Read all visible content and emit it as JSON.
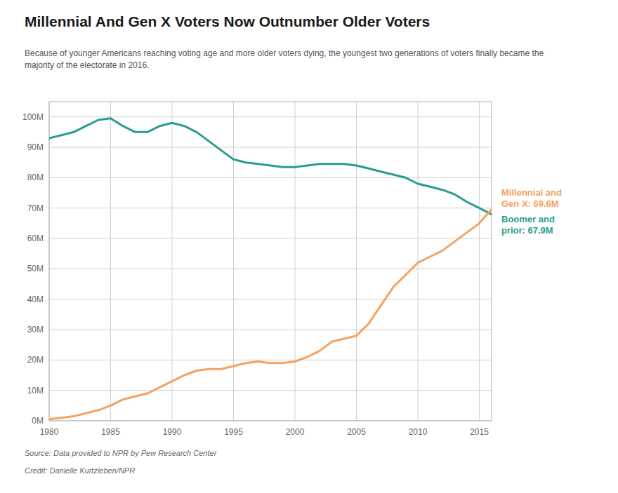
{
  "chart_data": {
    "type": "line",
    "title": "Millennial And Gen X Voters Now Outnumber Older Voters",
    "subtitle": "Because of younger Americans reaching voting age and more older voters dying, the youngest two generations of voters finally became the\nmajority of the electorate in 2016.",
    "source": "Source: Data provided to NPR by Pew Research Center",
    "credit": "Credit: Danielle Kurtzleben/NPR",
    "x": [
      1980,
      1981,
      1982,
      1983,
      1984,
      1985,
      1986,
      1987,
      1988,
      1989,
      1990,
      1991,
      1992,
      1993,
      1994,
      1995,
      1996,
      1997,
      1998,
      1999,
      2000,
      2001,
      2002,
      2003,
      2004,
      2005,
      2006,
      2007,
      2008,
      2009,
      2010,
      2011,
      2012,
      2013,
      2014,
      2015,
      2016
    ],
    "series": [
      {
        "name": "Boomer and\nprior: 67.9M",
        "color": "#2a9d8f",
        "values": [
          93,
          94,
          95,
          97,
          99,
          99.5,
          97,
          95,
          95,
          97,
          98,
          97,
          95,
          92,
          89,
          86,
          85,
          84.5,
          84,
          83.5,
          83.5,
          84,
          84.5,
          84.5,
          84.5,
          84,
          83,
          82,
          81,
          80,
          78,
          77,
          76,
          74.5,
          72,
          70,
          67.9
        ]
      },
      {
        "name": "Millennial and\nGen X: 69.6M",
        "color": "#f4a261",
        "values": [
          0.5,
          1,
          1.5,
          2.5,
          3.5,
          5,
          7,
          8,
          9,
          11,
          13,
          15,
          16.5,
          17,
          17,
          18,
          19,
          19.5,
          19,
          19,
          19.5,
          21,
          23,
          26,
          27,
          28,
          32,
          38,
          44,
          48,
          52,
          54,
          56,
          59,
          62,
          65,
          69.6
        ]
      }
    ],
    "xlim": [
      1980,
      2016
    ],
    "ylim": [
      0,
      105
    ],
    "xticks": [
      1980,
      1985,
      1990,
      1995,
      2000,
      2005,
      2010,
      2015
    ],
    "yticks": [
      {
        "value": 0,
        "label": "0M"
      },
      {
        "value": 10,
        "label": "10M"
      },
      {
        "value": 20,
        "label": "20M"
      },
      {
        "value": 30,
        "label": "30M"
      },
      {
        "value": 40,
        "label": "40M"
      },
      {
        "value": 50,
        "label": "50M"
      },
      {
        "value": 60,
        "label": "60M"
      },
      {
        "value": 70,
        "label": "70M"
      },
      {
        "value": 80,
        "label": "80M"
      },
      {
        "value": 90,
        "label": "90M"
      },
      {
        "value": 100,
        "label": "100M"
      }
    ],
    "grid": true
  }
}
